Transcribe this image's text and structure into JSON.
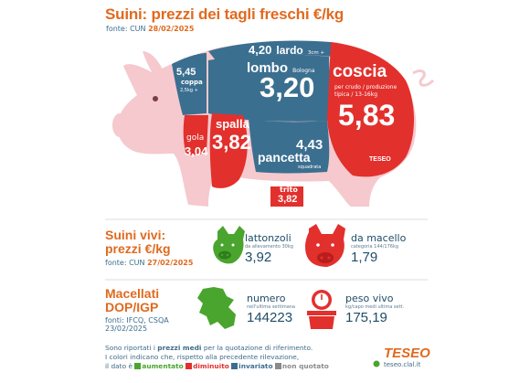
{
  "header": {
    "title": "Suini: prezzi dei tagli freschi €/kg",
    "source_prefix": "fonte: CUN",
    "source_date": "28/02/2025"
  },
  "cuts": {
    "lardo": {
      "value": "4,20",
      "label": "lardo",
      "note": "3cm +"
    },
    "coppa": {
      "value": "5,45",
      "label": "coppa",
      "note": "2,5kg +"
    },
    "lombo": {
      "label": "lombo",
      "note": "Bologna",
      "value": "3,20"
    },
    "coscia": {
      "label": "coscia",
      "note1": "per crudo / produzione",
      "note2": "tipica / 13-16kg",
      "value": "5,83"
    },
    "gola": {
      "label": "gola",
      "value": "3,04"
    },
    "spalla": {
      "label": "spalla",
      "value": "3,82"
    },
    "pancetta": {
      "value": "4,43",
      "label": "pancetta",
      "note": "squadrata"
    },
    "trito": {
      "label": "trito",
      "value": "3,82"
    },
    "brand_on_pig": "TESEO"
  },
  "live": {
    "title_line1": "Suini vivi:",
    "title_line2": "prezzi €/kg",
    "source_prefix": "fonte: CUN",
    "source_date": "27/02/2025",
    "lattonzoli": {
      "label": "lattonzoli",
      "note": "da allevamento 30kg",
      "value": "3,92",
      "icon": "piglet-head-icon"
    },
    "macello": {
      "label": "da macello",
      "note": "categoria 144/176kg",
      "value": "1,79",
      "icon": "pig-head-icon"
    }
  },
  "slaughter": {
    "title_line1": "Macellati",
    "title_line2": "DOP/IGP",
    "source1": "fonti: IFCQ, CSQA",
    "source2": "23/02/2025",
    "numero": {
      "label": "numero",
      "note": "nell'ultima settimana",
      "value": "144223",
      "icon": "italy-map-icon"
    },
    "peso": {
      "label": "peso vivo",
      "note": "kg/capo medi ultima sett.",
      "value": "175,19",
      "icon": "scale-icon"
    }
  },
  "notes": {
    "line1_pre": "Sono riportati i",
    "line1_bold": "prezzi medi",
    "line1_post": "per la quotazione di riferimento.",
    "line2": "I colori indicano che, rispetto alla precedente rilevazione,",
    "line3_pre": "il dato è",
    "legend": [
      {
        "label": "aumentato",
        "color": "#4aa52e"
      },
      {
        "label": "diminuito",
        "color": "#e2302d"
      },
      {
        "label": "invariato",
        "color": "#3b6f90"
      },
      {
        "label": "non quotato",
        "color": "#8a8a8a"
      }
    ]
  },
  "footer_brand": {
    "name": "TESEO",
    "site": "teseo.clal.it"
  },
  "colors": {
    "orange": "#e06a1f",
    "red": "#e2302d",
    "blue": "#3b6f90",
    "pink": "#f4c6cb"
  }
}
